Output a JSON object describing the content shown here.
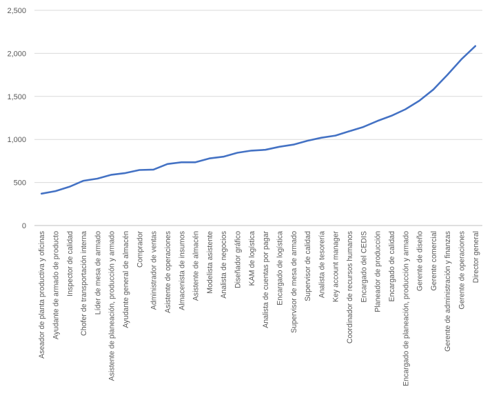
{
  "chart_data": {
    "type": "line",
    "title": "",
    "xlabel": "",
    "ylabel": "",
    "ylim": [
      0,
      2500
    ],
    "yticks": [
      0,
      500,
      1000,
      1500,
      2000,
      2500
    ],
    "ytick_labels": [
      "0",
      "500",
      "1,000",
      "1,500",
      "2,000",
      "2,500"
    ],
    "grid": true,
    "legend": "none",
    "line_color": "#4472C4",
    "categories": [
      "Aseador de planta productiva y oficinas",
      "Ayudante de armado de producto",
      "Inspector de calidad",
      "Chofer de transportación interna",
      "Líder de mesa de armado",
      "Asistente de planeación, producción y armado",
      "Ayudante general de almacén",
      "Comprador",
      "Administrador de ventas",
      "Asistente de operaciones",
      "Almacenista de insumos",
      "Asistente de almacén",
      "Modelista asistente",
      "Analista de negocios",
      "Diseñador gráfico",
      "KAM de logística",
      "Analista de cuentas por pagar",
      "Encargado de logística",
      "Supervisor de mesa de armado",
      "Supervisor  de calidad",
      "Analista de tesorería",
      "Key account manager",
      "Coordinador de recursos humanos",
      "Encargado del CEDIS",
      "Planeador de producción",
      "Encargado de calidad",
      "Encargado de planeación, producción y armado",
      "Gerente de diseño",
      "Gerente comercial",
      "Gerente de administración y finanzas",
      "Gerente de operaciones",
      "Director general"
    ],
    "series": [
      {
        "name": "",
        "values": [
          370,
          400,
          450,
          520,
          545,
          590,
          610,
          645,
          650,
          715,
          735,
          735,
          780,
          800,
          845,
          870,
          880,
          915,
          940,
          985,
          1020,
          1045,
          1095,
          1145,
          1215,
          1275,
          1350,
          1450,
          1580,
          1750,
          1930,
          2085
        ]
      }
    ]
  }
}
